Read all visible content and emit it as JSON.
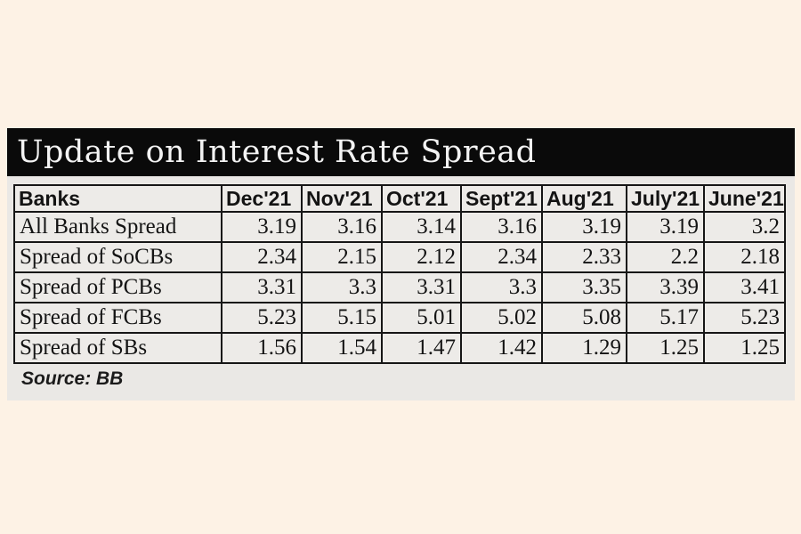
{
  "page": {
    "background": "#fdf2e5",
    "panel_background": "#eae8e5",
    "title_bar_background": "#0a0a0a",
    "title_text_color": "#f3f3f3",
    "border_color": "#161616"
  },
  "title_bar": {
    "label": "Update on Interest Rate Spread"
  },
  "source_note": {
    "label": "Source: BB"
  },
  "chart_data": {
    "type": "table",
    "title": "Update on Interest Rate Spread",
    "columns": [
      "Banks",
      "Dec'21",
      "Nov'21",
      "Oct'21",
      "Sept'21",
      "Aug'21",
      "July'21",
      "June'21"
    ],
    "rows": [
      {
        "label": "All Banks Spread",
        "values": [
          "3.19",
          "3.16",
          "3.14",
          "3.16",
          "3.19",
          "3.19",
          "3.2"
        ]
      },
      {
        "label": "Spread of SoCBs",
        "values": [
          "2.34",
          "2.15",
          "2.12",
          "2.34",
          "2.33",
          "2.2",
          "2.18"
        ]
      },
      {
        "label": "Spread of PCBs",
        "values": [
          "3.31",
          "3.3",
          "3.31",
          "3.3",
          "3.35",
          "3.39",
          "3.41"
        ]
      },
      {
        "label": "Spread of FCBs",
        "values": [
          "5.23",
          "5.15",
          "5.01",
          "5.02",
          "5.08",
          "5.17",
          "5.23"
        ]
      },
      {
        "label": "Spread of SBs",
        "values": [
          "1.56",
          "1.54",
          "1.47",
          "1.42",
          "1.29",
          "1.25",
          "1.25"
        ]
      }
    ],
    "source": "Source: BB"
  }
}
